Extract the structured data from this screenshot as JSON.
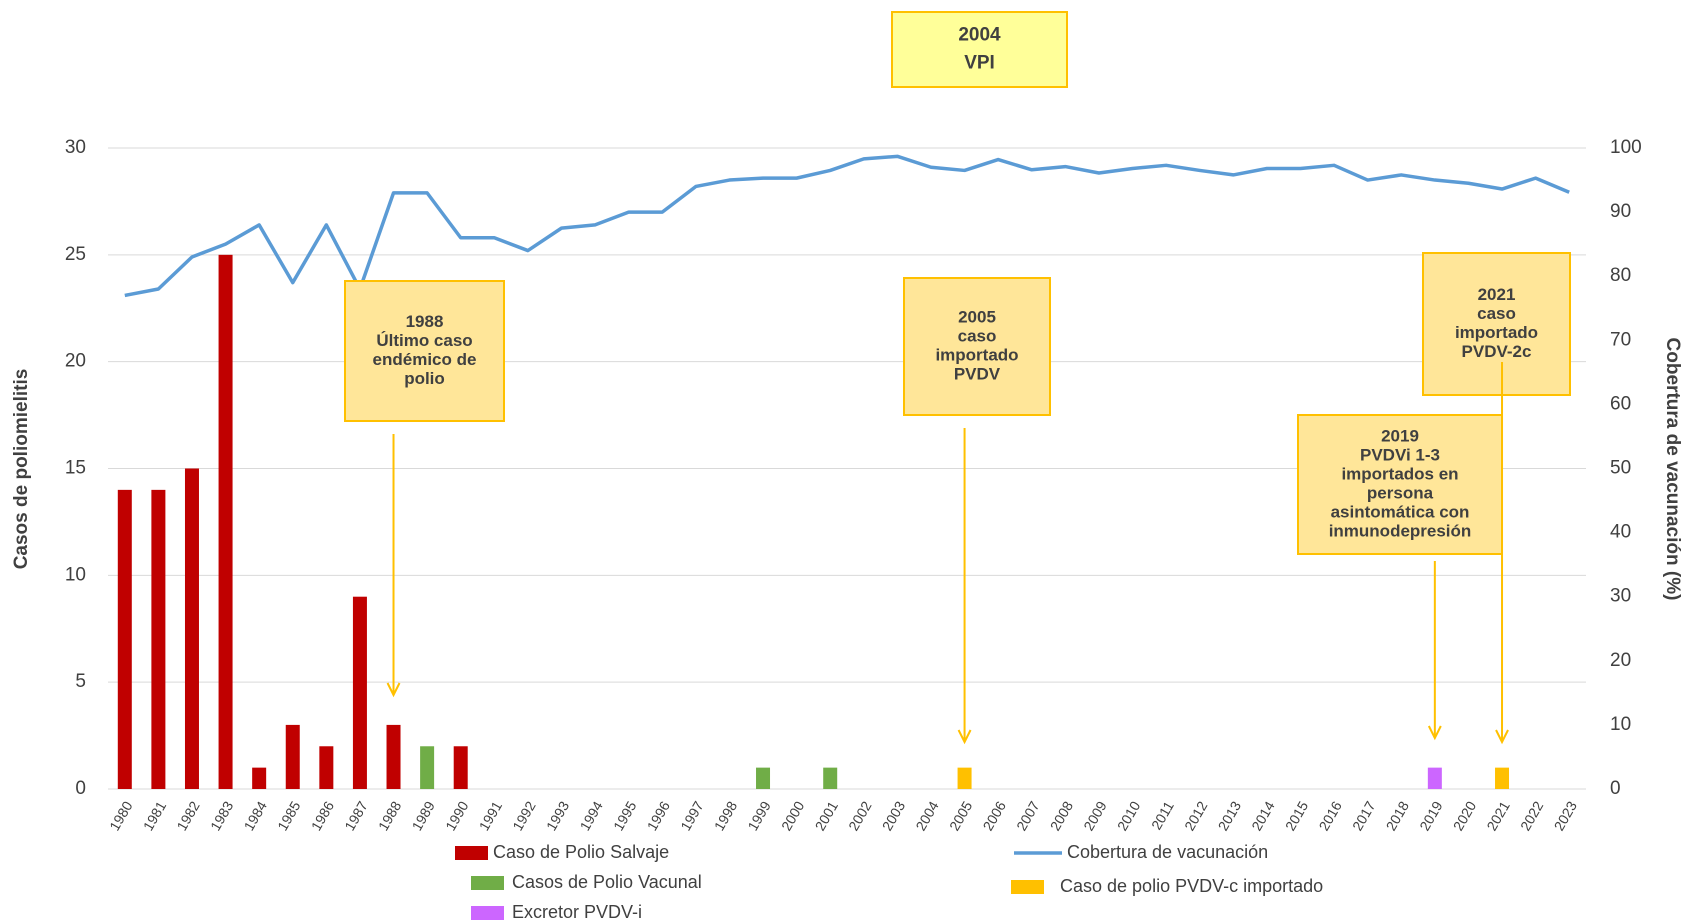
{
  "chart_data": {
    "type": "bar",
    "categories": [
      "1980",
      "1981",
      "1982",
      "1983",
      "1984",
      "1985",
      "1986",
      "1987",
      "1988",
      "1989",
      "1990",
      "1991",
      "1992",
      "1993",
      "1994",
      "1995",
      "1996",
      "1997",
      "1998",
      "1999",
      "2000",
      "2001",
      "2002",
      "2003",
      "2004",
      "2005",
      "2006",
      "2007",
      "2008",
      "2009",
      "2010",
      "2011",
      "2012",
      "2013",
      "2014",
      "2015",
      "2016",
      "2017",
      "2018",
      "2019",
      "2020",
      "2021",
      "2022",
      "2023"
    ],
    "y_label": "Casos de poliomielitis",
    "y2_label": "Cobertura de vacunación (%)",
    "ylim": [
      0,
      30
    ],
    "yticks": [
      0,
      5,
      10,
      15,
      20,
      25,
      30
    ],
    "y2lim": [
      0,
      100
    ],
    "y2ticks": [
      0,
      10,
      20,
      30,
      40,
      50,
      60,
      70,
      80,
      90,
      100
    ],
    "grid": true,
    "series": [
      {
        "name": "Caso de Polio Salvaje",
        "color": "#c00000",
        "type": "bar",
        "values": [
          14,
          14,
          15,
          25,
          1,
          3,
          2,
          9,
          3,
          null,
          2,
          null,
          null,
          null,
          null,
          null,
          null,
          null,
          null,
          null,
          null,
          null,
          null,
          null,
          null,
          null,
          null,
          null,
          null,
          null,
          null,
          null,
          null,
          null,
          null,
          null,
          null,
          null,
          null,
          null,
          null,
          null,
          null,
          null
        ]
      },
      {
        "name": "Casos de Polio Vacunal",
        "color": "#70ad47",
        "type": "bar",
        "values": [
          null,
          null,
          null,
          null,
          null,
          null,
          null,
          null,
          null,
          2,
          null,
          null,
          null,
          null,
          null,
          null,
          null,
          null,
          null,
          1,
          null,
          1,
          null,
          null,
          null,
          null,
          null,
          null,
          null,
          null,
          null,
          null,
          null,
          null,
          null,
          null,
          null,
          null,
          null,
          null,
          null,
          null,
          null,
          null
        ]
      },
      {
        "name": "Excretor PVDV-i",
        "color": "#cc66ff",
        "type": "bar",
        "values": [
          null,
          null,
          null,
          null,
          null,
          null,
          null,
          null,
          null,
          null,
          null,
          null,
          null,
          null,
          null,
          null,
          null,
          null,
          null,
          null,
          null,
          null,
          null,
          null,
          null,
          null,
          null,
          null,
          null,
          null,
          null,
          null,
          null,
          null,
          null,
          null,
          null,
          null,
          null,
          1,
          null,
          null,
          null,
          null
        ]
      },
      {
        "name": "Cobertura de vacunación",
        "color": "#5b9bd5",
        "type": "line",
        "axis": "y2",
        "values": [
          77,
          78,
          83,
          85,
          88,
          79,
          88,
          78,
          93,
          93,
          86,
          86,
          84,
          87.5,
          88,
          90,
          90,
          94,
          95,
          95.3,
          95.3,
          96.5,
          98.3,
          98.7,
          97,
          96.5,
          98.2,
          96.6,
          97.1,
          96.1,
          96.8,
          97.3,
          96.5,
          95.8,
          96.8,
          96.8,
          97.3,
          95,
          95.8,
          95,
          94.5,
          93.6,
          95.3,
          93.1
        ]
      },
      {
        "name": "Caso de polio PVDV-c importado",
        "color": "#ffc000",
        "type": "bar",
        "values": [
          null,
          null,
          null,
          null,
          null,
          null,
          null,
          null,
          null,
          null,
          null,
          null,
          null,
          null,
          null,
          null,
          null,
          null,
          null,
          null,
          null,
          null,
          null,
          null,
          null,
          1,
          null,
          null,
          null,
          null,
          null,
          null,
          null,
          null,
          null,
          null,
          null,
          null,
          null,
          null,
          null,
          1,
          null,
          null
        ]
      }
    ],
    "annotations": [
      {
        "lines": [
          "2004",
          "VPI"
        ]
      },
      {
        "lines": [
          "1988",
          "Último caso",
          "endémico de",
          "polio"
        ]
      },
      {
        "lines": [
          "2005",
          "caso",
          "importado",
          "PVDV"
        ]
      },
      {
        "lines": [
          "2021",
          "caso",
          "importado",
          "PVDV-2c"
        ]
      },
      {
        "lines": [
          "2019",
          "PVDVi 1-3",
          "importados en",
          "persona",
          "asintomática con",
          "inmunodepresión"
        ]
      }
    ]
  }
}
